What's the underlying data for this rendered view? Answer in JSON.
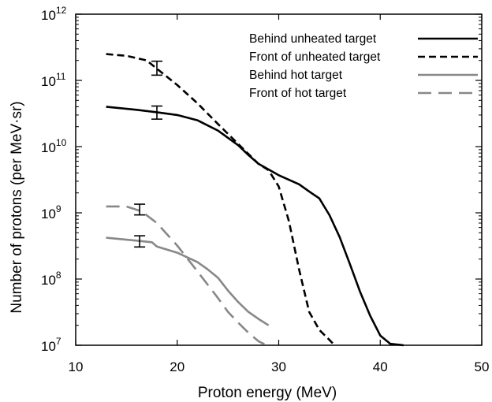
{
  "chart_data": {
    "type": "line",
    "title": "",
    "xlabel": "Proton energy (MeV)",
    "ylabel": "Number of protons (per MeV·sr)",
    "xlim": [
      10,
      50
    ],
    "ylim": [
      10000000.0,
      1000000000000.0
    ],
    "yscale": "log",
    "x_ticks": [
      10,
      20,
      30,
      40,
      50
    ],
    "x_tick_labels": [
      "10",
      "20",
      "30",
      "40",
      "50"
    ],
    "y_ticks": [
      {
        "value": 10000000.0,
        "base": "10",
        "exp": "7"
      },
      {
        "value": 100000000.0,
        "base": "10",
        "exp": "8"
      },
      {
        "value": 1000000000.0,
        "base": "10",
        "exp": "9"
      },
      {
        "value": 10000000000.0,
        "base": "10",
        "exp": "10"
      },
      {
        "value": 100000000000.0,
        "base": "10",
        "exp": "11"
      },
      {
        "value": 1000000000000.0,
        "base": "10",
        "exp": "12"
      }
    ],
    "grid": false,
    "legend_position": "top-right",
    "series": [
      {
        "name": "Behind unheated target",
        "color": "#000000",
        "style": "solid",
        "points": [
          [
            13,
            40000000000.0
          ],
          [
            16,
            36000000000.0
          ],
          [
            18,
            33000000000.0
          ],
          [
            20,
            30000000000.0
          ],
          [
            22,
            25000000000.0
          ],
          [
            24,
            17500000000.0
          ],
          [
            26,
            10500000000.0
          ],
          [
            27,
            7500000000.0
          ],
          [
            28,
            5500000000.0
          ],
          [
            30,
            3700000000.0
          ],
          [
            32,
            2700000000.0
          ],
          [
            33,
            2100000000.0
          ],
          [
            34,
            1650000000.0
          ],
          [
            35,
            920000000.0
          ],
          [
            36,
            430000000.0
          ],
          [
            37,
            170000000.0
          ],
          [
            38,
            65000000.0
          ],
          [
            39,
            28000000.0
          ],
          [
            40,
            14000000.0
          ],
          [
            41,
            10500000.0
          ],
          [
            42.3,
            10000000.0
          ]
        ],
        "error_bar": {
          "x": 18,
          "y": 33000000000.0,
          "low": 26000000000.0,
          "high": 41000000000.0
        }
      },
      {
        "name": "Front of unheated target",
        "color": "#000000",
        "style": "dashed",
        "points": [
          [
            13,
            250000000000.0
          ],
          [
            15,
            235000000000.0
          ],
          [
            17,
            200000000000.0
          ],
          [
            18,
            150000000000.0
          ],
          [
            20,
            85000000000.0
          ],
          [
            22,
            45000000000.0
          ],
          [
            24,
            22000000000.0
          ],
          [
            26,
            11000000000.0
          ],
          [
            28,
            5500000000.0
          ],
          [
            29,
            4400000000.0
          ],
          [
            30,
            2500000000.0
          ],
          [
            31,
            750000000.0
          ],
          [
            32,
            140000000.0
          ],
          [
            33,
            32000000.0
          ],
          [
            34,
            17000000.0
          ],
          [
            35,
            12000000.0
          ],
          [
            35.5,
            10000000.0
          ]
        ],
        "error_bar": {
          "x": 18,
          "y": 155000000000.0,
          "low": 120000000000.0,
          "high": 195000000000.0
        }
      },
      {
        "name": "Behind hot target",
        "color": "#888888",
        "style": "solid",
        "points": [
          [
            13,
            420000000.0
          ],
          [
            16,
            380000000.0
          ],
          [
            17.5,
            360000000.0
          ],
          [
            18,
            310000000.0
          ],
          [
            20,
            250000000.0
          ],
          [
            22,
            180000000.0
          ],
          [
            23,
            140000000.0
          ],
          [
            24,
            105000000.0
          ],
          [
            25,
            67000000.0
          ],
          [
            26,
            45000000.0
          ],
          [
            27,
            32000000.0
          ],
          [
            28,
            25000000.0
          ],
          [
            29,
            20000000.0
          ]
        ],
        "error_bar": {
          "x": 16.3,
          "y": 370000000.0,
          "low": 305000000.0,
          "high": 450000000.0
        }
      },
      {
        "name": "Front of hot target",
        "color": "#888888",
        "style": "longdash",
        "points": [
          [
            13,
            1250000000.0
          ],
          [
            15,
            1250000000.0
          ],
          [
            16.5,
            1050000000.0
          ],
          [
            18,
            700000000.0
          ],
          [
            20,
            320000000.0
          ],
          [
            22,
            130000000.0
          ],
          [
            24,
            52000000.0
          ],
          [
            25,
            32000000.0
          ],
          [
            26,
            22000000.0
          ],
          [
            27,
            15500000.0
          ],
          [
            28,
            11500000.0
          ],
          [
            28.8,
            10000000.0
          ]
        ],
        "error_bar": {
          "x": 16.3,
          "y": 1120000000.0,
          "low": 930000000.0,
          "high": 1350000000.0
        }
      }
    ]
  }
}
